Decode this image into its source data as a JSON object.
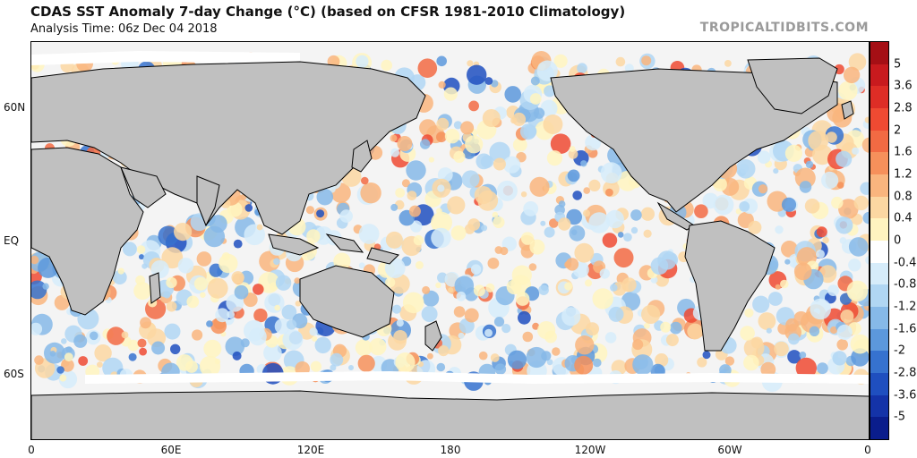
{
  "header": {
    "title": "CDAS SST Anomaly 7-day Change (°C) (based on CFSR 1981-2010 Climatology)",
    "subtitle": "Analysis Time: 06z Dec 04 2018",
    "credit": "TROPICALTIDBITS.COM"
  },
  "map": {
    "lat_labels": [
      "60N",
      "EQ",
      "60S"
    ],
    "lon_labels": [
      "0",
      "60E",
      "120E",
      "180",
      "120W",
      "60W",
      "0"
    ],
    "land_color": "#c0c0c0",
    "ice_color": "#ffffff"
  },
  "colorbar": {
    "labels": [
      "5",
      "3.6",
      "2.8",
      "2",
      "1.6",
      "1.2",
      "0.8",
      "0.4",
      "0",
      "-0.4",
      "-0.8",
      "-1.2",
      "-1.6",
      "-2",
      "-2.8",
      "-3.6",
      "-5"
    ],
    "colors": [
      "#a50f15",
      "#c81a1e",
      "#de2d26",
      "#ef4a32",
      "#f26a43",
      "#f6905b",
      "#f9b57e",
      "#fbd7a2",
      "#fff4c0",
      "#ffffff",
      "#d6ecfa",
      "#b0d6f3",
      "#86b9e8",
      "#5c98dc",
      "#3672cf",
      "#1f4fbf",
      "#1433a8",
      "#0a1d8c"
    ]
  }
}
